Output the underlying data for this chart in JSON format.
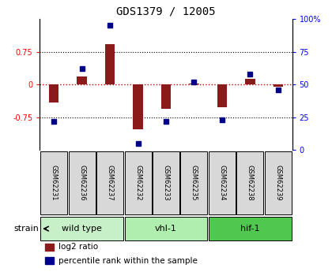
{
  "title": "GDS1379 / 12005",
  "samples": [
    "GSM62231",
    "GSM62236",
    "GSM62237",
    "GSM62232",
    "GSM62233",
    "GSM62235",
    "GSM62234",
    "GSM62238",
    "GSM62239"
  ],
  "log2_ratio": [
    -0.42,
    0.18,
    0.93,
    -1.02,
    -0.55,
    0.03,
    -0.52,
    0.13,
    -0.05
  ],
  "percentile_rank": [
    22,
    62,
    95,
    5,
    22,
    52,
    23,
    58,
    46
  ],
  "ylim_left": [
    -1.5,
    1.5
  ],
  "ylim_right": [
    0,
    100
  ],
  "bar_color": "#8B1A1A",
  "dot_color": "#00008B",
  "groups": [
    {
      "label": "wild type",
      "start": 0,
      "end": 3,
      "color": "#C8F0C8"
    },
    {
      "label": "vhl-1",
      "start": 3,
      "end": 6,
      "color": "#B0EEB0"
    },
    {
      "label": "hif-1",
      "start": 6,
      "end": 9,
      "color": "#50C850"
    }
  ],
  "strain_label": "strain",
  "legend_items": [
    {
      "label": "log2 ratio",
      "color": "#8B1A1A"
    },
    {
      "label": "percentile rank within the sample",
      "color": "#00008B"
    }
  ],
  "zero_line_color": "#CC0000",
  "background_color": "#D8D8D8"
}
